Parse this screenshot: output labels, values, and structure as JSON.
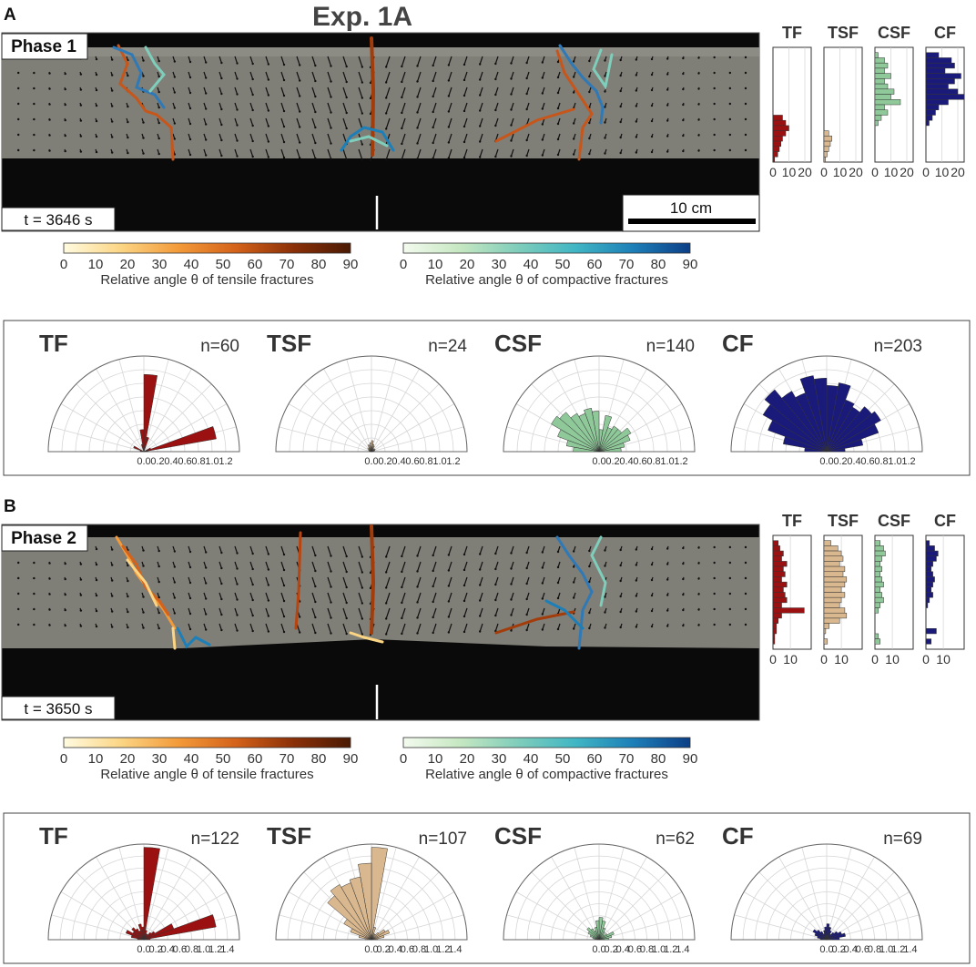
{
  "figure": {
    "title": "Exp. 1A"
  },
  "panels": [
    {
      "letter": "A",
      "phase": "Phase 1",
      "time": "t = 3646 s",
      "scale_bar": "10 cm",
      "colorbars": [
        {
          "ticks": [
            "0",
            "10",
            "20",
            "30",
            "40",
            "50",
            "60",
            "70",
            "80",
            "90"
          ],
          "label": "Relative angle θ of tensile fractures",
          "colors": [
            "#fffbe0",
            "#fbd584",
            "#f39a3a",
            "#d4621a",
            "#8b3008",
            "#4a1a04"
          ]
        },
        {
          "ticks": [
            "0",
            "10",
            "20",
            "30",
            "40",
            "50",
            "60",
            "70",
            "80",
            "90"
          ],
          "label": "Relative angle θ of compactive fractures",
          "colors": [
            "#f4fbef",
            "#c5e7c1",
            "#7fcdbb",
            "#41b6c4",
            "#1d7fb8",
            "#0c3e86"
          ]
        }
      ],
      "histograms": {
        "categories": [
          "TF",
          "TSF",
          "CSF",
          "CF"
        ],
        "tick_labels": [
          "0",
          "10",
          "20"
        ],
        "xlim": [
          0,
          24
        ]
      },
      "roses": {
        "axis_ticks": [
          "0.0",
          "0.2",
          "0.4",
          "0.6",
          "0.8",
          "1.0",
          "1.2"
        ],
        "rmax": 1.3
      }
    },
    {
      "letter": "B",
      "phase": "Phase 2",
      "time": "t = 3650 s",
      "scale_bar": "",
      "colorbars": [
        {
          "ticks": [
            "0",
            "10",
            "20",
            "30",
            "40",
            "50",
            "60",
            "70",
            "80",
            "90"
          ],
          "label": "Relative angle θ of tensile fractures",
          "colors": [
            "#fffbe0",
            "#fbd584",
            "#f39a3a",
            "#d4621a",
            "#8b3008",
            "#4a1a04"
          ]
        },
        {
          "ticks": [
            "0",
            "10",
            "20",
            "30",
            "40",
            "50",
            "60",
            "70",
            "80",
            "90"
          ],
          "label": "Relative angle θ of compactive fractures",
          "colors": [
            "#f4fbef",
            "#c5e7c1",
            "#7fcdbb",
            "#41b6c4",
            "#1d7fb8",
            "#0c3e86"
          ]
        }
      ],
      "histograms": {
        "categories": [
          "TF",
          "TSF",
          "CSF",
          "CF"
        ],
        "tick_labels": [
          "0",
          "10"
        ],
        "xlim": [
          0,
          22
        ]
      },
      "roses": {
        "axis_ticks": [
          "0.0",
          "0.2",
          "0.4",
          "0.6",
          "0.8",
          "1.0",
          "1.2",
          "1.4"
        ],
        "rmax": 1.5
      }
    }
  ],
  "chart_data": [
    {
      "type": "bar",
      "orientation": "horizontal",
      "panel": "A",
      "xlim": [
        0,
        24
      ],
      "series": [
        {
          "name": "TF",
          "color": "#9b1010",
          "values": [
            0,
            0,
            0,
            0,
            0,
            0,
            0,
            0,
            0,
            0,
            0,
            0,
            0,
            6,
            8,
            10,
            8,
            6,
            5,
            4,
            3,
            1
          ]
        },
        {
          "name": "TSF",
          "color": "#d9b88f",
          "values": [
            0,
            0,
            0,
            0,
            0,
            0,
            0,
            0,
            0,
            0,
            0,
            0,
            0,
            0,
            0,
            0,
            3,
            5,
            4,
            3,
            2,
            1
          ]
        },
        {
          "name": "CSF",
          "color": "#8fc99a",
          "values": [
            0,
            2,
            6,
            8,
            6,
            10,
            6,
            8,
            12,
            10,
            16,
            6,
            8,
            4,
            2,
            0,
            0,
            0,
            0,
            0,
            0,
            0
          ]
        },
        {
          "name": "CF",
          "color": "#1a1a7a",
          "values": [
            0,
            8,
            16,
            18,
            12,
            22,
            18,
            14,
            20,
            24,
            14,
            8,
            6,
            4,
            2,
            0,
            0,
            0,
            0,
            0,
            0,
            0
          ]
        }
      ]
    },
    {
      "type": "bar",
      "orientation": "horizontal",
      "panel": "B",
      "xlim": [
        0,
        22
      ],
      "series": [
        {
          "name": "TF",
          "color": "#9b1010",
          "values": [
            0,
            3,
            4,
            6,
            5,
            8,
            6,
            7,
            5,
            8,
            6,
            7,
            8,
            5,
            18,
            5,
            3,
            2,
            2,
            1,
            1,
            0
          ]
        },
        {
          "name": "TSF",
          "color": "#d9b88f",
          "values": [
            0,
            4,
            8,
            10,
            11,
            9,
            12,
            11,
            13,
            12,
            10,
            12,
            10,
            9,
            12,
            13,
            9,
            3,
            1,
            0,
            2,
            0
          ]
        },
        {
          "name": "CSF",
          "color": "#8fc99a",
          "values": [
            0,
            3,
            5,
            6,
            4,
            3,
            4,
            3,
            4,
            5,
            3,
            4,
            5,
            3,
            2,
            0,
            0,
            0,
            0,
            2,
            3,
            0
          ]
        },
        {
          "name": "CF",
          "color": "#1a1a7a",
          "values": [
            0,
            2,
            5,
            7,
            6,
            4,
            3,
            4,
            5,
            4,
            3,
            4,
            2,
            1,
            0,
            0,
            0,
            0,
            6,
            0,
            3,
            0
          ]
        }
      ]
    },
    {
      "type": "polar-bar",
      "panel": "A",
      "bin_width_deg": 10,
      "rlim": [
        0,
        1.3
      ],
      "series": [
        {
          "name": "TF",
          "n": "n=60",
          "color": "#9b1010",
          "theta_deg": [
            5,
            15,
            25,
            35,
            45,
            55,
            65,
            75,
            85,
            95,
            105,
            115,
            125,
            135,
            145,
            155,
            165,
            175
          ],
          "r": [
            0.05,
            1.0,
            0.1,
            0,
            0,
            0,
            0,
            0.2,
            1.05,
            0.3,
            0.1,
            0,
            0,
            0,
            0,
            0.15,
            0.05,
            0.05
          ]
        },
        {
          "name": "TSF",
          "n": "n=24",
          "color": "#d9b88f",
          "theta_deg": [
            5,
            15,
            25,
            35,
            45,
            55,
            65,
            75,
            85,
            95,
            105,
            115,
            125,
            135,
            145,
            155,
            165,
            175
          ],
          "r": [
            0.02,
            0.04,
            0.05,
            0.06,
            0.04,
            0.05,
            0.08,
            0.1,
            0.15,
            0.12,
            0.08,
            0.1,
            0.06,
            0.07,
            0.05,
            0.04,
            0.03,
            0.02
          ]
        },
        {
          "name": "CSF",
          "n": "n=140",
          "color": "#8fc99a",
          "theta_deg": [
            5,
            15,
            25,
            35,
            45,
            55,
            65,
            75,
            85,
            95,
            105,
            115,
            125,
            135,
            145,
            155,
            165,
            175
          ],
          "r": [
            0.3,
            0.35,
            0.45,
            0.5,
            0.4,
            0.4,
            0.35,
            0.5,
            0.3,
            0.55,
            0.6,
            0.55,
            0.6,
            0.7,
            0.75,
            0.6,
            0.45,
            0.35
          ]
        },
        {
          "name": "CF",
          "n": "n=203",
          "color": "#1a1a7a",
          "theta_deg": [
            5,
            15,
            25,
            35,
            45,
            55,
            65,
            75,
            85,
            95,
            105,
            115,
            125,
            135,
            145,
            155,
            165,
            175
          ],
          "r": [
            0.25,
            0.5,
            0.75,
            0.85,
            0.8,
            0.7,
            0.75,
            0.95,
            0.9,
            1.0,
            1.05,
            0.85,
            0.95,
            1.1,
            1.0,
            0.85,
            0.6,
            0.3
          ]
        }
      ]
    },
    {
      "type": "polar-bar",
      "panel": "B",
      "bin_width_deg": 10,
      "rlim": [
        0,
        1.5
      ],
      "series": [
        {
          "name": "TF",
          "n": "n=122",
          "color": "#9b1010",
          "theta_deg": [
            5,
            15,
            25,
            35,
            45,
            55,
            65,
            75,
            85,
            95,
            105,
            115,
            125,
            135,
            145,
            155,
            165,
            175
          ],
          "r": [
            0.1,
            1.15,
            0.5,
            0.2,
            0.15,
            0.1,
            0.1,
            0.15,
            1.45,
            0.2,
            0.25,
            0.15,
            0.2,
            0.25,
            0.2,
            0.3,
            0.2,
            0.1
          ]
        },
        {
          "name": "TSF",
          "n": "n=107",
          "color": "#d9b88f",
          "theta_deg": [
            5,
            15,
            25,
            35,
            45,
            55,
            65,
            75,
            85,
            95,
            105,
            115,
            125,
            135,
            145,
            155,
            165,
            175
          ],
          "r": [
            0.1,
            0.2,
            0.3,
            0.25,
            0.15,
            0.1,
            0.1,
            0.2,
            1.45,
            1.2,
            1.0,
            0.95,
            1.0,
            0.9,
            0.5,
            0.35,
            0.2,
            0.1
          ]
        },
        {
          "name": "CSF",
          "n": "n=62",
          "color": "#8fc99a",
          "theta_deg": [
            5,
            15,
            25,
            35,
            45,
            55,
            65,
            75,
            85,
            95,
            105,
            115,
            125,
            135,
            145,
            155,
            165,
            175
          ],
          "r": [
            0.15,
            0.2,
            0.25,
            0.15,
            0.1,
            0.15,
            0.2,
            0.3,
            0.35,
            0.3,
            0.2,
            0.15,
            0.2,
            0.25,
            0.2,
            0.15,
            0.1,
            0.05
          ]
        },
        {
          "name": "CF",
          "n": "n=69",
          "color": "#1a1a7a",
          "theta_deg": [
            5,
            15,
            25,
            35,
            45,
            55,
            65,
            75,
            85,
            95,
            105,
            115,
            125,
            135,
            145,
            155,
            165,
            175
          ],
          "r": [
            0.2,
            0.3,
            0.25,
            0.2,
            0.15,
            0.1,
            0.15,
            0.2,
            0.25,
            0.2,
            0.15,
            0.1,
            0.15,
            0.2,
            0.25,
            0.2,
            0.15,
            0.1
          ]
        }
      ]
    }
  ]
}
